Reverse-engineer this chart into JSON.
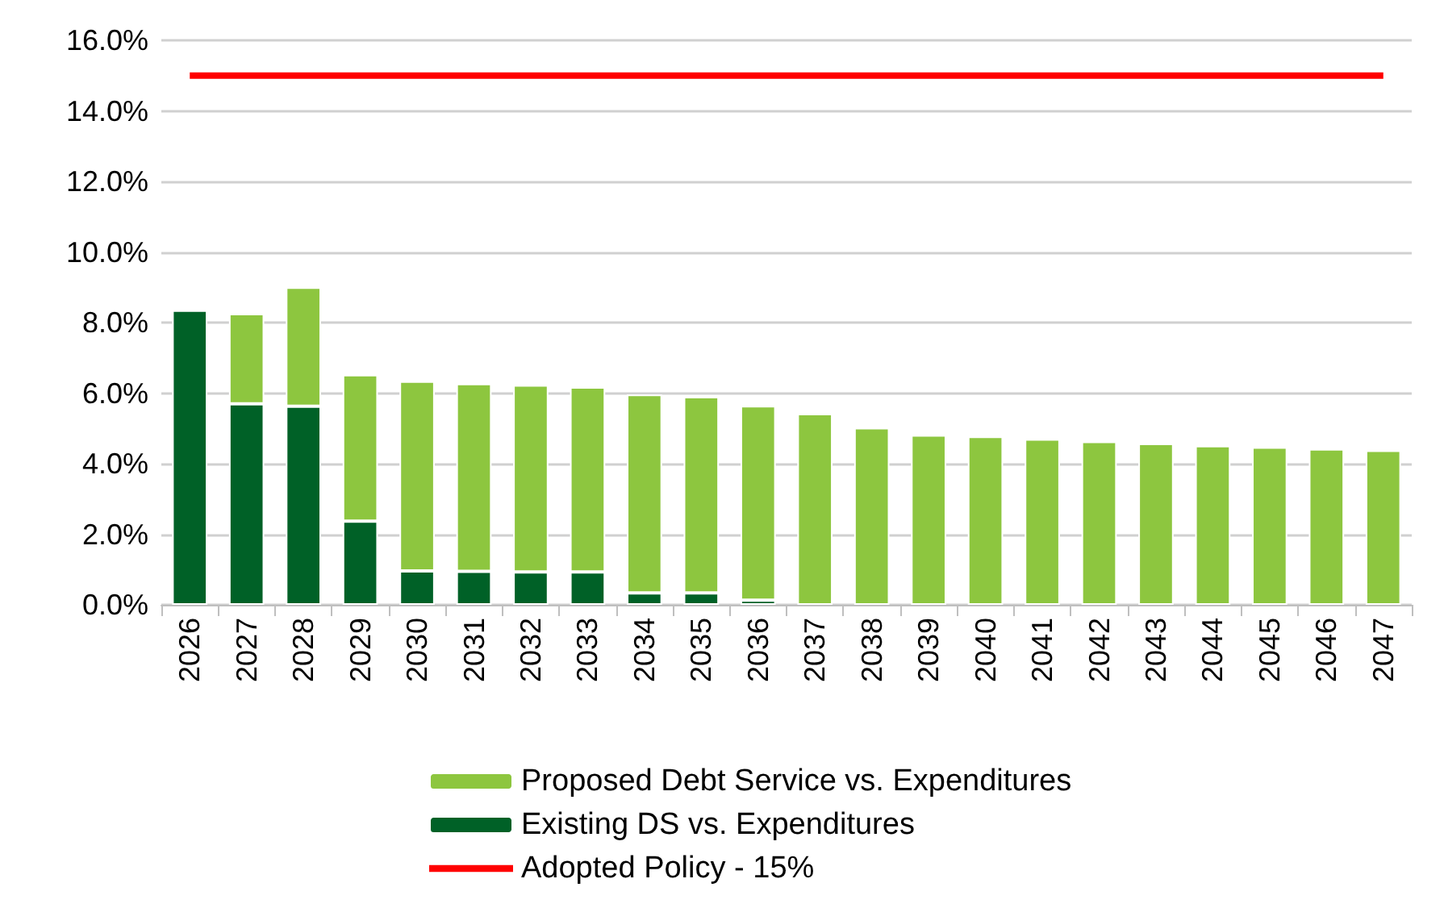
{
  "chart_data": {
    "type": "bar",
    "stacked": true,
    "categories": [
      "2026",
      "2027",
      "2028",
      "2029",
      "2030",
      "2031",
      "2032",
      "2033",
      "2034",
      "2035",
      "2036",
      "2037",
      "2038",
      "2039",
      "2040",
      "2041",
      "2042",
      "2043",
      "2044",
      "2045",
      "2046",
      "2047"
    ],
    "series": [
      {
        "name": "Existing DS vs. Expenditures",
        "color": "#006127",
        "values": [
          8.35,
          5.7,
          5.63,
          2.37,
          0.96,
          0.95,
          0.93,
          0.93,
          0.34,
          0.34,
          0.13,
          null,
          null,
          null,
          null,
          null,
          null,
          null,
          null,
          null,
          null,
          null
        ]
      },
      {
        "name": "Proposed Debt Service vs. Expenditures",
        "color": "#8dc63f",
        "values": [
          null,
          2.55,
          3.37,
          4.15,
          5.38,
          5.32,
          5.3,
          5.24,
          5.62,
          5.56,
          5.51,
          5.42,
          5.02,
          4.81,
          4.77,
          4.7,
          4.63,
          4.57,
          4.51,
          4.47,
          4.42,
          4.38
        ]
      },
      {
        "name": "Adopted Policy - 15%",
        "type": "line",
        "color": "#ff0000",
        "values": [
          15,
          15,
          15,
          15,
          15,
          15,
          15,
          15,
          15,
          15,
          15,
          15,
          15,
          15,
          15,
          15,
          15,
          15,
          15,
          15,
          15,
          15
        ]
      }
    ],
    "ylim": [
      0,
      16
    ],
    "yticks": [
      {
        "value": 0,
        "label": "0.0%"
      },
      {
        "value": 2,
        "label": "2.0%"
      },
      {
        "value": 4,
        "label": "4.0%"
      },
      {
        "value": 6,
        "label": "6.0%"
      },
      {
        "value": 8,
        "label": "8.0%"
      },
      {
        "value": 10,
        "label": "10.0%"
      },
      {
        "value": 12,
        "label": "12.0%"
      },
      {
        "value": 14,
        "label": "14.0%"
      },
      {
        "value": 16,
        "label": "16.0%"
      }
    ],
    "grid": "y",
    "legend": "bottom",
    "marker": "none",
    "line_style": "solid"
  }
}
